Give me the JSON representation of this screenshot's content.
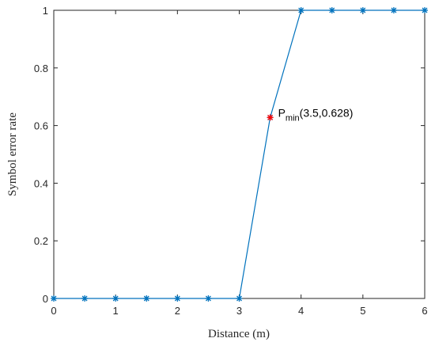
{
  "chart_data": {
    "type": "line",
    "title": "",
    "xlabel": "Distance (m)",
    "ylabel": "Symbol error rate",
    "xlim": [
      0,
      6
    ],
    "ylim": [
      0,
      1
    ],
    "xticks": [
      "0",
      "1",
      "2",
      "3",
      "4",
      "5",
      "6"
    ],
    "yticks": [
      "0",
      "0.2",
      "0.4",
      "0.6",
      "0.8",
      "1"
    ],
    "grid": false,
    "series": [
      {
        "x": [
          0,
          0.5,
          1,
          1.5,
          2,
          2.5,
          3,
          3.5,
          4,
          4.5,
          5,
          5.5,
          6
        ],
        "y": [
          0,
          0,
          0,
          0,
          0,
          0,
          0,
          0.628,
          1,
          1,
          1,
          1,
          1
        ],
        "color": "#0072BD",
        "marker": "asterisk"
      }
    ],
    "highlight": {
      "x": 3.5,
      "y": 0.628,
      "color": "#FF0000",
      "marker": "asterisk",
      "label_main": "P",
      "label_sub": "min",
      "label_suffix": "(3.5,0.628)"
    }
  }
}
